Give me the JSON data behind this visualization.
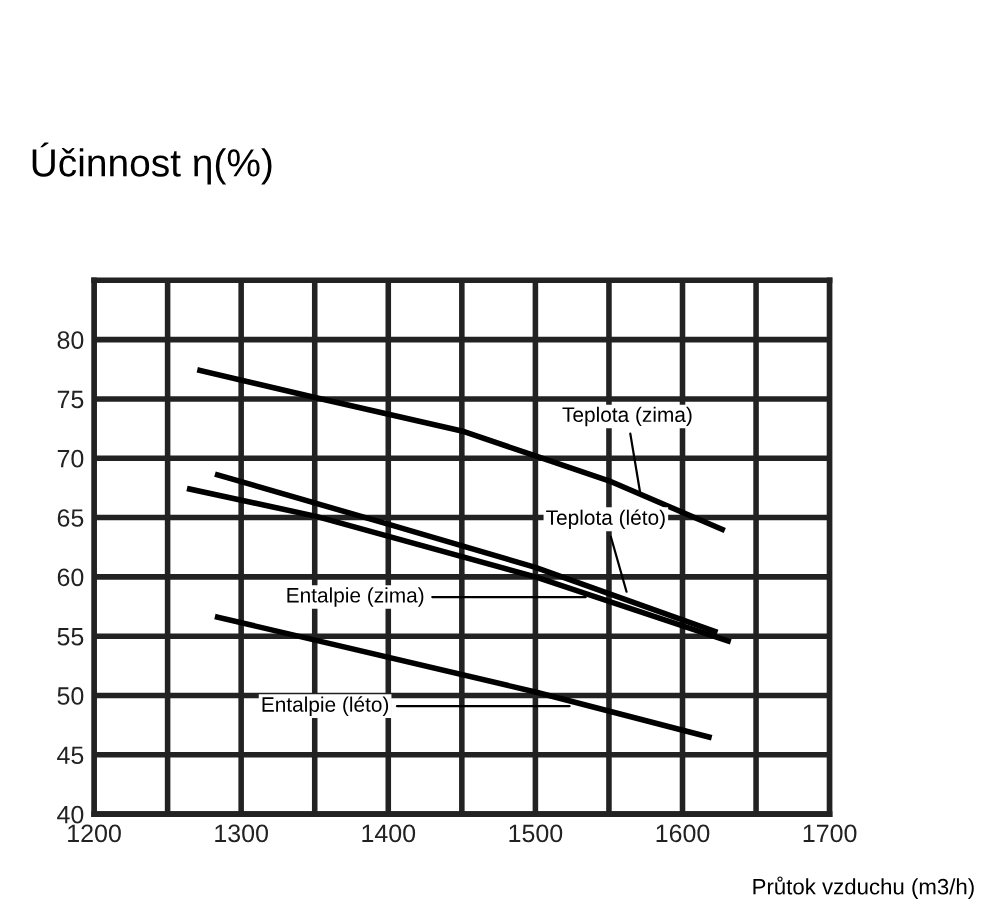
{
  "chart_data": {
    "type": "line",
    "title": "Účinnost η(%)",
    "xlabel": "Průtok vzduchu (m3/h)",
    "xlim": [
      1200,
      1700
    ],
    "xticks": [
      1200,
      1300,
      1400,
      1500,
      1600,
      1700
    ],
    "ylim": [
      40,
      85
    ],
    "yticks": [
      40,
      45,
      50,
      55,
      60,
      65,
      70,
      75,
      80,
      {
        "value": 85,
        "label": null
      }
    ],
    "grid": true,
    "legend": false,
    "marker": "none",
    "line_style": "solid",
    "series": [
      {
        "color": "#000000",
        "x": [
          1272,
          1351,
          1450,
          1500,
          1550,
          1627
        ],
        "values": [
          77.4,
          75.1,
          72.3,
          70.2,
          68.1,
          64.0
        ]
      },
      {
        "color": "#000000",
        "x": [
          1284,
          1401,
          1500,
          1622
        ],
        "values": [
          68.6,
          64.4,
          60.8,
          55.4
        ]
      },
      {
        "color": "#000000",
        "x": [
          1265,
          1351,
          1500,
          1631
        ],
        "values": [
          67.4,
          65.1,
          60.0,
          54.6
        ]
      },
      {
        "color": "#000000",
        "x": [
          1284,
          1500,
          1618
        ],
        "values": [
          56.6,
          50.3,
          46.5
        ]
      }
    ],
    "annotations": [
      {
        "text": "Teplota (zima)",
        "x": 1572,
        "y": 66.5
      },
      {
        "text": "Teplota (léto)",
        "x": 1563,
        "y": 58.3
      },
      {
        "text": "Entalpie (zima)",
        "x": 1538,
        "y": 58.3
      },
      {
        "text": "Entalpie (léto)",
        "x": 1527,
        "y": 49.1
      }
    ]
  }
}
